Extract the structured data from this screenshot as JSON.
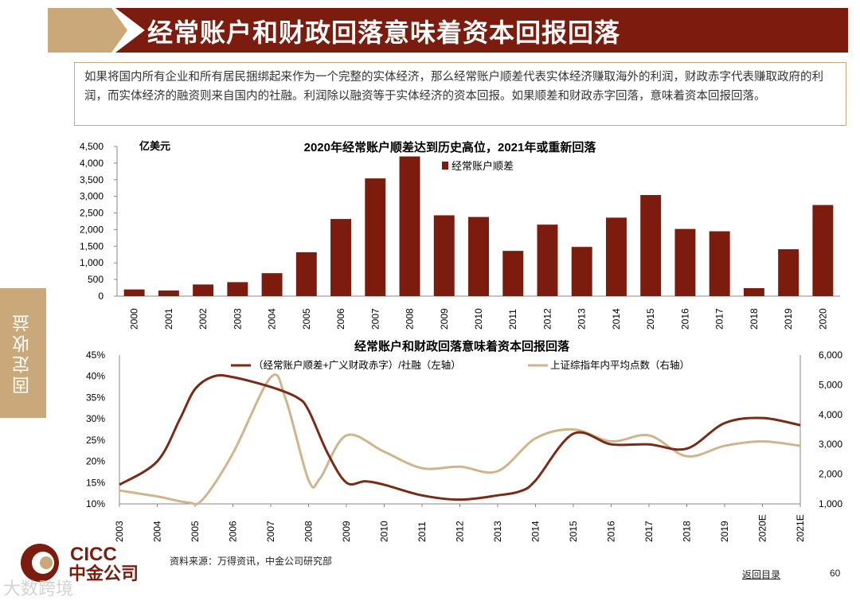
{
  "header": {
    "title": "经常账户和财政回落意味着资本回报回落"
  },
  "intro": "如果将国内所有企业和所有居民捆绑起来作为一个完整的实体经济，那么经常账户顺差代表实体经济赚取海外的利润，财政赤字代表赚取政府的利润，而实体经济的融资则来自国内的社融。利润除以融资等于实体经济的资本回报。如果顺差和财政赤字回落，意味着资本回报回落。",
  "sidebar_tab": "固定收益",
  "chart_data": [
    {
      "type": "bar",
      "title": "2020年经常账户顺差达到历史高位，2021年或重新回落",
      "ylabel": "亿美元",
      "legend": "经常账户顺差",
      "ylim": [
        0,
        4500
      ],
      "yticks": [
        "0",
        "500",
        "1,000",
        "1,500",
        "2,000",
        "2,500",
        "3,000",
        "3,500",
        "4,000",
        "4,500"
      ],
      "categories": [
        "2000",
        "2001",
        "2002",
        "2003",
        "2004",
        "2005",
        "2006",
        "2007",
        "2008",
        "2009",
        "2010",
        "2011",
        "2012",
        "2013",
        "2014",
        "2015",
        "2016",
        "2017",
        "2018",
        "2019",
        "2020"
      ],
      "values": [
        200,
        170,
        350,
        420,
        690,
        1320,
        2320,
        3540,
        4200,
        2430,
        2380,
        1360,
        2150,
        1480,
        2360,
        3040,
        2020,
        1950,
        240,
        1410,
        2740
      ],
      "color": "#7b1c0e"
    },
    {
      "type": "line",
      "title": "经常账户和财政回落意味着资本回报回落",
      "categories": [
        "2003",
        "2004",
        "2005",
        "2006",
        "2007",
        "2008",
        "2009",
        "2010",
        "2011",
        "2012",
        "2013",
        "2014",
        "2015",
        "2016",
        "2017",
        "2018",
        "2019",
        "2020E",
        "2021E"
      ],
      "ylim_left": [
        10,
        45
      ],
      "ylim_right": [
        1000,
        6000
      ],
      "yticks_left": [
        "10%",
        "15%",
        "20%",
        "25%",
        "30%",
        "35%",
        "40%",
        "45%"
      ],
      "yticks_right": [
        "1,000",
        "2,000",
        "3,000",
        "4,000",
        "5,000",
        "6,000"
      ],
      "series": [
        {
          "name": "（经常账户顺差+广义财政赤字）/社融（左轴）",
          "axis": "left",
          "color": "#7b2a14",
          "x": [
            2003,
            2004,
            2004.6,
            2005,
            2005.5,
            2006,
            2007,
            2007.7,
            2008,
            2008.5,
            2009,
            2009.5,
            2010,
            2011,
            2012,
            2013,
            2013.6,
            2014,
            2015,
            2016,
            2017,
            2018,
            2019,
            2020,
            2021
          ],
          "y": [
            14.5,
            20,
            30,
            37,
            40,
            39.8,
            37.5,
            35,
            32,
            22,
            15,
            15.3,
            14.5,
            12,
            11,
            12,
            13,
            15.5,
            26.5,
            24,
            24,
            23,
            29,
            30.2,
            28.5
          ]
        },
        {
          "name": "上证综指年内平均点数（右轴）",
          "axis": "right",
          "color": "#d2b48c",
          "x": [
            2003,
            2004,
            2004.8,
            2005.2,
            2006,
            2007,
            2007.4,
            2008,
            2008.3,
            2009,
            2010,
            2011,
            2012,
            2013,
            2014,
            2015,
            2016,
            2017,
            2018,
            2019,
            2020,
            2021
          ],
          "y": [
            1450,
            1250,
            1050,
            1150,
            2700,
            5250,
            4500,
            1800,
            1850,
            3300,
            2750,
            2200,
            2250,
            2100,
            3200,
            3500,
            3100,
            3300,
            2600,
            2950,
            3100,
            2950
          ]
        }
      ]
    }
  ],
  "footer": {
    "source": "资料来源：万得资讯，中金公司研究部",
    "back": "返回目录",
    "page": "60",
    "logo_en": "CICC",
    "logo_cn": "中金公司",
    "watermark": "大数跨境"
  }
}
